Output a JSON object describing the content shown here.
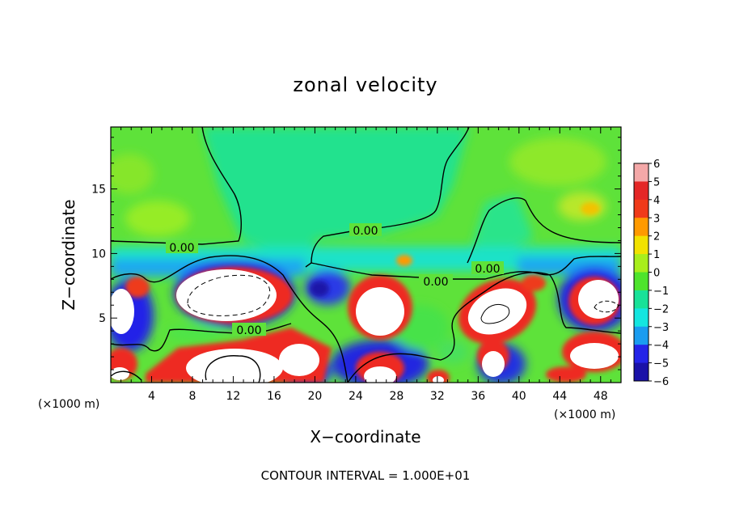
{
  "chart_data": {
    "type": "heatmap",
    "title": "zonal velocity",
    "xlabel": "X−coordinate",
    "ylabel": "Z−coordinate",
    "x_unit_left": "(×1000 m)",
    "x_unit_right": "(×1000 m)",
    "xlim": [
      0,
      50
    ],
    "ylim": [
      0,
      19.8
    ],
    "x_ticks": [
      4,
      8,
      12,
      16,
      20,
      24,
      28,
      32,
      36,
      40,
      44,
      48
    ],
    "y_ticks": [
      5,
      10,
      15
    ],
    "colorbar": {
      "levels": [
        6,
        5,
        4,
        3,
        2,
        1,
        0,
        -1,
        -2,
        -3,
        -4,
        -5,
        -6
      ],
      "colors": [
        "#f4a8a8",
        "#e42626",
        "#f03a1a",
        "#ff9a00",
        "#f2e200",
        "#a8ee1c",
        "#4ee42c",
        "#18e298",
        "#14e6e0",
        "#1a9cf0",
        "#2424e8",
        "#1a12a8",
        "#7a18b8"
      ],
      "tick_labels": [
        "6",
        "5",
        "4",
        "3",
        "2",
        "1",
        "0",
        "−1",
        "−2",
        "−3",
        "−4",
        "−5",
        "−6"
      ]
    },
    "contour_labels": [
      "0.00",
      "0.00",
      "0.00",
      "0.00",
      "0.00"
    ],
    "footer": "CONTOUR INTERVAL = 1.000E+01",
    "grid": false
  }
}
